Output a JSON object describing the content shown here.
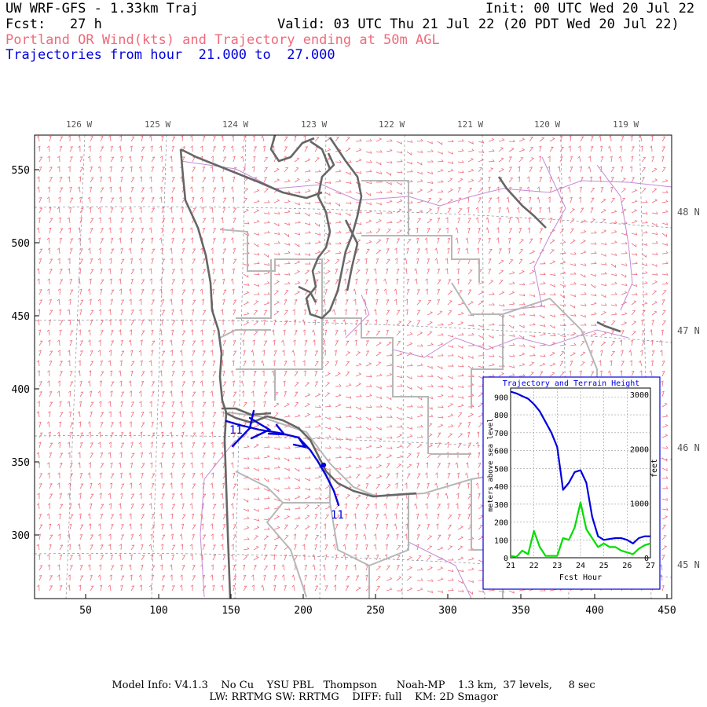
{
  "header": {
    "model_title": "UW WRF-GFS - 1.33km Traj",
    "init": "Init: 00 UTC Wed 20 Jul 22",
    "fcst": "Fcst:   27 h",
    "valid": "Valid: 03 UTC Thu 21 Jul 22 (20 PDT Wed 20 Jul 22)",
    "subtitle": "Portland OR Wind(kts) and Trajectory ending at 50m AGL",
    "traj_range": "Trajectories from hour  21.000 to  27.000"
  },
  "map": {
    "lon_labels": [
      "126 W",
      "125 W",
      "124 W",
      "123 W",
      "122 W",
      "121 W",
      "120 W",
      "119 W"
    ],
    "lat_labels": [
      "48 N",
      "47 N",
      "46 N",
      "45 N"
    ],
    "y_ticks": [
      "550",
      "500",
      "450",
      "400",
      "350",
      "300"
    ],
    "x_ticks": [
      "50",
      "100",
      "150",
      "200",
      "250",
      "300",
      "350",
      "400",
      "450"
    ],
    "traj_start_label": "11",
    "traj_end_label": "11",
    "colors": {
      "wind_barb": "#ef6b7a",
      "coastline": "#666666",
      "state_border": "#b7b7b7",
      "county_border": "#c58ad6",
      "trajectory": "#0000dd"
    }
  },
  "inset": {
    "title": "Trajectory and Terrain Height",
    "y_label_left": "meters above sea level",
    "y_label_right": "feet",
    "x_label": "Fcst Hour",
    "left_ticks": [
      "900",
      "800",
      "700",
      "600",
      "500",
      "400",
      "300",
      "200",
      "100",
      "0"
    ],
    "right_ticks": [
      "3000",
      "2000",
      "1000",
      "0"
    ],
    "x_ticks": [
      "21",
      "22",
      "23",
      "24",
      "25",
      "26",
      "27"
    ]
  },
  "chart_data": {
    "type": "line",
    "title": "Trajectory and Terrain Height",
    "xlabel": "Fcst Hour",
    "ylabel": "meters above sea level",
    "xlim": [
      21,
      27
    ],
    "ylim": [
      0,
      950
    ],
    "grid": true,
    "x": [
      21.0,
      21.25,
      21.5,
      21.75,
      22.0,
      22.25,
      22.5,
      22.75,
      23.0,
      23.25,
      23.5,
      23.75,
      24.0,
      24.25,
      24.5,
      24.75,
      25.0,
      25.25,
      25.5,
      25.75,
      26.0,
      26.25,
      26.5,
      26.75,
      27.0
    ],
    "series": [
      {
        "color": "#0000dd",
        "values": [
          930,
          920,
          905,
          890,
          860,
          820,
          760,
          700,
          620,
          380,
          420,
          480,
          490,
          420,
          230,
          120,
          100,
          105,
          110,
          110,
          100,
          80,
          110,
          120,
          120
        ]
      },
      {
        "color": "#00dd00",
        "values": [
          10,
          5,
          40,
          20,
          150,
          60,
          10,
          10,
          10,
          110,
          100,
          170,
          310,
          160,
          110,
          60,
          80,
          60,
          60,
          40,
          30,
          20,
          50,
          70,
          80
        ]
      }
    ]
  }
}
